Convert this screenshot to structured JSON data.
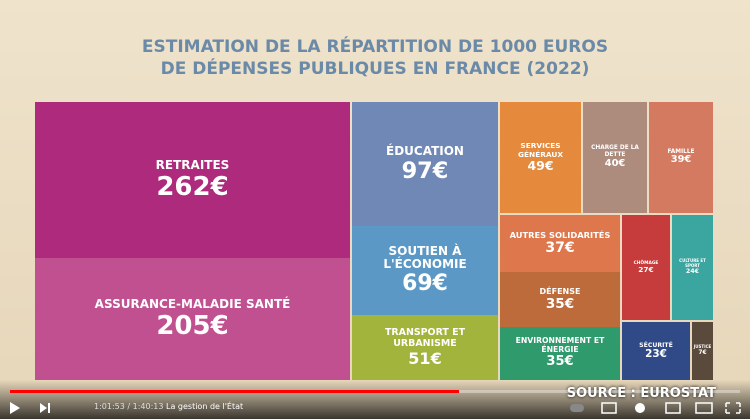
{
  "chart_data": {
    "type": "treemap",
    "title": "ESTIMATION DE LA RÉPARTITION DE 1000 EUROS DE DÉPENSES PUBLIQUES EN FRANCE (2022)",
    "categories": [
      "RETRAITES",
      "ASSURANCE-MALADIE SANTÉ",
      "ÉDUCATION",
      "SOUTIEN À L'ÉCONOMIE",
      "TRANSPORT ET URBANISME",
      "SERVICES GÉNÉRAUX",
      "CHARGE DE LA DETTE",
      "FAMILLE",
      "AUTRES SOLIDARITÉS",
      "DÉFENSE",
      "ENVIRONNEMENT ET ÉNERGIE",
      "CHÔMAGE",
      "CULTURE ET SPORT",
      "SÉCURITÉ",
      "JUSTICE"
    ],
    "values": [
      262,
      205,
      97,
      69,
      51,
      49,
      40,
      39,
      37,
      35,
      35,
      27,
      24,
      23,
      7
    ],
    "value_labels": [
      "262€",
      "205€",
      "97€",
      "69€",
      "51€",
      "49€",
      "40€",
      "39€",
      "37€",
      "35€",
      "35€",
      "27€",
      "24€",
      "23€",
      "7€"
    ],
    "colors": [
      "#ad2a7c",
      "#c0508f",
      "#6f88b5",
      "#5b98c6",
      "#a3b43c",
      "#e58a3d",
      "#ad8b7d",
      "#d47a60",
      "#de774b",
      "#bd6b3b",
      "#2f9a6c",
      "#c63b3b",
      "#3ba5a0",
      "#2f4a86",
      "#5a4a3c"
    ],
    "source": "SOURCE : EUROSTAT"
  },
  "player": {
    "time": "1:01:53 / 1:40:13",
    "chapter": "La gestion de l'État"
  }
}
